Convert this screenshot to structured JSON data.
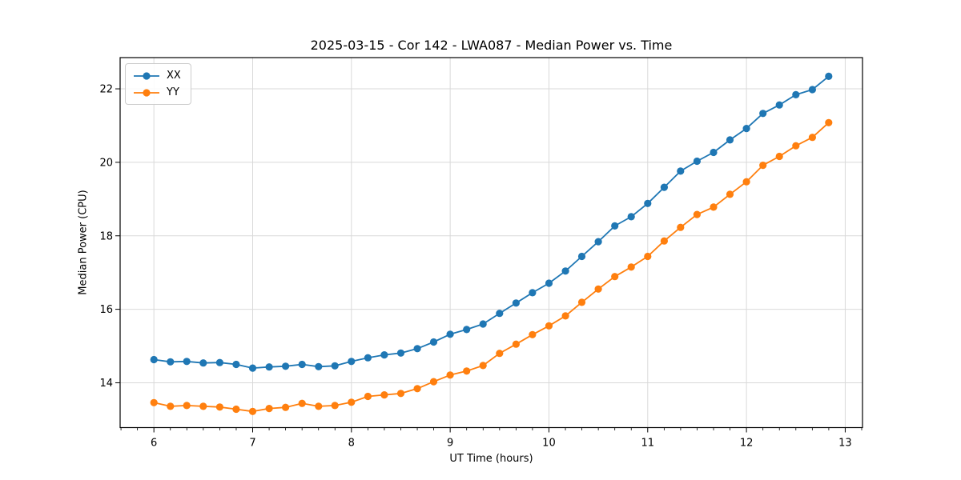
{
  "chart_data": {
    "type": "line",
    "title": "2025-03-15 - Cor 142 - LWA087 - Median Power vs. Time",
    "xlabel": "UT Time (hours)",
    "ylabel": "Median Power (CPU)",
    "xlim": [
      5.658,
      13.175
    ],
    "ylim": [
      12.78,
      22.85
    ],
    "xticks": [
      6,
      7,
      8,
      9,
      10,
      11,
      12,
      13
    ],
    "yticks": [
      14,
      16,
      18,
      20,
      22
    ],
    "x_minor_tick_step": 0.16667,
    "grid": true,
    "grid_color": "#d9d9d9",
    "legend_position": "upper-left",
    "x": [
      6.0,
      6.167,
      6.333,
      6.5,
      6.667,
      6.833,
      7.0,
      7.167,
      7.333,
      7.5,
      7.667,
      7.833,
      8.0,
      8.167,
      8.333,
      8.5,
      8.667,
      8.833,
      9.0,
      9.167,
      9.333,
      9.5,
      9.667,
      9.833,
      10.0,
      10.167,
      10.333,
      10.5,
      10.667,
      10.833,
      11.0,
      11.167,
      11.333,
      11.5,
      11.667,
      11.833,
      12.0,
      12.167,
      12.333,
      12.5,
      12.667,
      12.833
    ],
    "series": [
      {
        "name": "XX",
        "color": "#1f77b4",
        "marker": "circle",
        "values": [
          14.63,
          14.57,
          14.58,
          14.54,
          14.55,
          14.5,
          14.4,
          14.43,
          14.45,
          14.5,
          14.44,
          14.46,
          14.58,
          14.68,
          14.76,
          14.81,
          14.93,
          15.11,
          15.32,
          15.45,
          15.6,
          15.89,
          16.17,
          16.45,
          16.71,
          17.04,
          17.44,
          17.84,
          18.27,
          18.52,
          18.88,
          19.32,
          19.76,
          20.03,
          20.27,
          20.61,
          20.92,
          21.33,
          21.56,
          21.84,
          21.98,
          22.34
        ]
      },
      {
        "name": "YY",
        "color": "#ff7f0e",
        "marker": "circle",
        "values": [
          13.46,
          13.36,
          13.38,
          13.36,
          13.34,
          13.28,
          13.22,
          13.3,
          13.33,
          13.44,
          13.36,
          13.38,
          13.47,
          13.63,
          13.67,
          13.71,
          13.84,
          14.03,
          14.21,
          14.32,
          14.47,
          14.8,
          15.05,
          15.31,
          15.55,
          15.82,
          16.19,
          16.55,
          16.89,
          17.15,
          17.44,
          17.86,
          18.23,
          18.58,
          18.78,
          19.13,
          19.47,
          19.92,
          20.16,
          20.45,
          20.68,
          21.08
        ]
      }
    ]
  }
}
